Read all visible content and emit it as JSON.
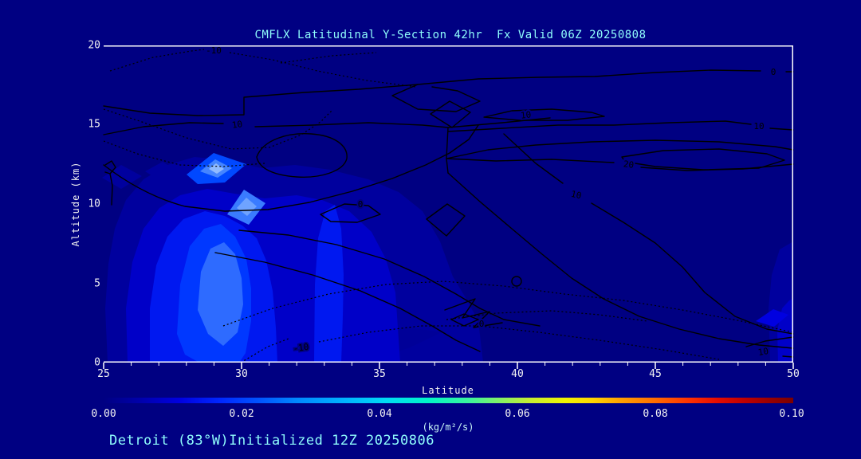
{
  "title": "CMFLX Latitudinal Y-Section 42hr  Fx Valid 06Z 20250808",
  "footer": {
    "annotation": "Detroit (83°W)Initialized 12Z 20250806"
  },
  "axes": {
    "y_label": "Altitude (km)",
    "x_label": "Latitude",
    "y_ticks": [
      "20",
      "15",
      "10",
      "5",
      "0"
    ],
    "x_ticks": [
      "25",
      "30",
      "35",
      "40",
      "45",
      "50"
    ]
  },
  "colorbar": {
    "tick_labels": [
      "0.00",
      "0.02",
      "0.04",
      "0.06",
      "0.08",
      "0.10"
    ],
    "units": "(kg/m²/s)",
    "min": 0.0,
    "max": 0.1
  },
  "contour_labels": [
    {
      "text": "-10"
    },
    {
      "text": "0"
    },
    {
      "text": "10"
    },
    {
      "text": "10"
    },
    {
      "text": "10"
    },
    {
      "text": "20"
    },
    {
      "text": "10"
    },
    {
      "text": "0"
    },
    {
      "text": "0"
    },
    {
      "text": "10"
    },
    {
      "text": "-10"
    }
  ],
  "colors": {
    "background": "#000082",
    "contour_line": "#000000",
    "axis_text": "#f2f2f2",
    "title_text": "#8ffcfc",
    "shading_levels": [
      "#00009e",
      "#0000c8",
      "#0018f0",
      "#0038ff",
      "#2e6bff",
      "#4585ff",
      "#6fa3ff",
      "#90bbff"
    ]
  },
  "chart_data": {
    "type": "heatmap",
    "subtype": "filled-contour-cross-section-with-line-contours",
    "title": "CMFLX Latitudinal Y-Section 42hr  Fx Valid 06Z 20250808",
    "xlabel": "Latitude",
    "ylabel": "Altitude (km)",
    "xlim": [
      25,
      50
    ],
    "ylim": [
      0,
      20
    ],
    "x_ticks": [
      25,
      30,
      35,
      40,
      45,
      50
    ],
    "y_ticks": [
      0,
      5,
      10,
      15,
      20
    ],
    "grid": false,
    "legend_position": "bottom-colorbar",
    "fill_variable_units": "kg/m²/s",
    "fill_range": [
      0.0,
      0.1
    ],
    "colorbar_ticks": [
      0.0,
      0.02,
      0.04,
      0.06,
      0.08,
      0.1
    ],
    "colorbar_colors": [
      "navy",
      "blue",
      "cyan",
      "green",
      "yellow",
      "orange",
      "red",
      "dark-red"
    ],
    "line_contour_levels_labeled": [
      -10,
      0,
      10,
      20
    ],
    "negative_contours_style": "dashed",
    "features": [
      {
        "name": "shaded-flux-region",
        "lat_range": [
          25.3,
          37
        ],
        "alt_range_km": [
          0,
          13.5
        ],
        "values_kg_m2_s": [
          0.005,
          0.03
        ]
      },
      {
        "name": "shading-peak",
        "lat": 29.0,
        "alt_km": 12.3,
        "value_kg_m2_s_approx": 0.03
      },
      {
        "name": "secondary-shaded-band-right-edge",
        "lat_range": [
          49.3,
          50
        ],
        "alt_range_km": [
          0,
          9
        ]
      },
      {
        "name": "line-contour-max-20",
        "lat_range": [
          38,
          49
        ],
        "alt_range_km": [
          12.5,
          15.5
        ]
      },
      {
        "name": "dashed-negative-contours",
        "regions": [
          "upper-left 15-20 km, lat 25-35",
          "near-surface 0-3 km, lat 29-50"
        ]
      }
    ]
  }
}
